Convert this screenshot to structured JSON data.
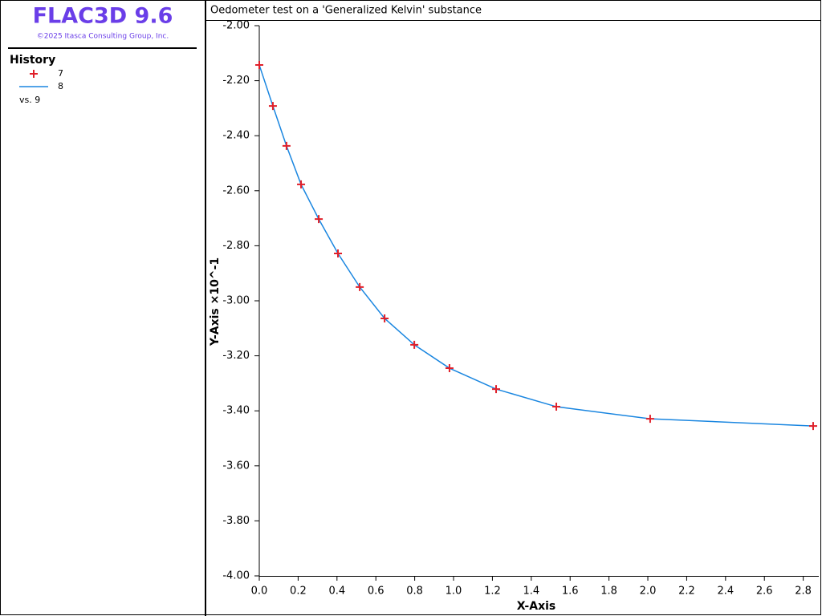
{
  "header": {
    "title": "FLAC3D 9.6",
    "copyright": "©2025 Itasca Consulting Group, Inc."
  },
  "chart_data": {
    "type": "line",
    "title": "Oedometer test on a 'Generalized Kelvin' substance",
    "legend_title": "History",
    "legend_note": "vs. 9",
    "x_label": "X-Axis",
    "y_label": "Y-Axis ×10^-1",
    "x": [
      0,
      0.07,
      0.14,
      0.215,
      0.306,
      0.405,
      0.517,
      0.645,
      0.798,
      0.979,
      1.219,
      1.529,
      2.012,
      2.851
    ],
    "series": [
      {
        "name": "7",
        "color": "#e0202a",
        "marker": "+",
        "values": [
          -2.143,
          -2.292,
          -2.437,
          -2.577,
          -2.703,
          -2.828,
          -2.95,
          -3.064,
          -3.16,
          -3.245,
          -3.321,
          -3.385,
          -3.429,
          -3.455
        ]
      },
      {
        "name": "8",
        "color": "#1a86e0",
        "marker": "none",
        "values": [
          -2.143,
          -2.292,
          -2.437,
          -2.577,
          -2.703,
          -2.828,
          -2.95,
          -3.064,
          -3.16,
          -3.245,
          -3.321,
          -3.385,
          -3.429,
          -3.455
        ]
      }
    ],
    "xlim": [
      0,
      2.88
    ],
    "ylim": [
      -4,
      -2
    ],
    "xticks": [
      {
        "value": 0,
        "label": "0.0"
      },
      {
        "value": 0.2,
        "label": "0.2"
      },
      {
        "value": 0.4,
        "label": "0.4"
      },
      {
        "value": 0.6,
        "label": "0.6"
      },
      {
        "value": 0.8,
        "label": "0.8"
      },
      {
        "value": 1,
        "label": "1.0"
      },
      {
        "value": 1.2,
        "label": "1.2"
      },
      {
        "value": 1.4,
        "label": "1.4"
      },
      {
        "value": 1.6,
        "label": "1.6"
      },
      {
        "value": 1.8,
        "label": "1.8"
      },
      {
        "value": 2,
        "label": "2.0"
      },
      {
        "value": 2.2,
        "label": "2.2"
      },
      {
        "value": 2.4,
        "label": "2.4"
      },
      {
        "value": 2.6,
        "label": "2.6"
      },
      {
        "value": 2.8,
        "label": "2.8"
      }
    ],
    "yticks": [
      {
        "value": -2,
        "label": "-2.00"
      },
      {
        "value": -2.2,
        "label": "-2.20"
      },
      {
        "value": -2.4,
        "label": "-2.40"
      },
      {
        "value": -2.6,
        "label": "-2.60"
      },
      {
        "value": -2.8,
        "label": "-2.80"
      },
      {
        "value": -3,
        "label": "-3.00"
      },
      {
        "value": -3.2,
        "label": "-3.20"
      },
      {
        "value": -3.4,
        "label": "-3.40"
      },
      {
        "value": -3.6,
        "label": "-3.60"
      },
      {
        "value": -3.8,
        "label": "-3.80"
      },
      {
        "value": -4,
        "label": "-4.00"
      }
    ]
  }
}
